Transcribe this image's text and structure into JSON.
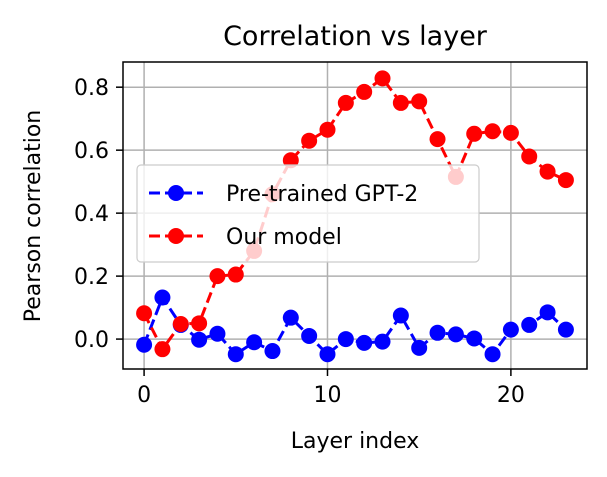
{
  "chart_data": {
    "type": "line",
    "title": "Correlation vs layer",
    "xlabel": "Layer index",
    "ylabel": "Pearson correlation",
    "xlim": [
      -1.15,
      24.15
    ],
    "ylim": [
      -0.095,
      0.88
    ],
    "xticks": [
      0,
      10,
      20
    ],
    "xtick_labels": [
      "0",
      "10",
      "20"
    ],
    "yticks": [
      0.0,
      0.2,
      0.4,
      0.6,
      0.8
    ],
    "ytick_labels": [
      "0.0",
      "0.2",
      "0.4",
      "0.6",
      "0.8"
    ],
    "grid": true,
    "legend_position": "center-left",
    "x": [
      0,
      1,
      2,
      3,
      4,
      5,
      6,
      7,
      8,
      9,
      10,
      11,
      12,
      13,
      14,
      15,
      16,
      17,
      18,
      19,
      20,
      21,
      22,
      23
    ],
    "series": [
      {
        "name": "Pre-trained GPT-2",
        "color": "#0000ff",
        "linestyle": "dashed",
        "marker": "circle",
        "values": [
          -0.018,
          0.132,
          0.045,
          -0.002,
          0.017,
          -0.048,
          -0.01,
          -0.038,
          0.068,
          0.01,
          -0.048,
          0.0,
          -0.012,
          -0.008,
          0.075,
          -0.028,
          0.02,
          0.015,
          0.002,
          -0.048,
          0.03,
          0.045,
          0.085,
          0.03
        ]
      },
      {
        "name": "Our model",
        "color": "#ff0000",
        "linestyle": "dashed",
        "marker": "circle",
        "values": [
          0.082,
          -0.032,
          0.048,
          0.05,
          0.2,
          0.205,
          0.28,
          0.46,
          0.568,
          0.63,
          0.665,
          0.75,
          0.785,
          0.828,
          0.75,
          0.755,
          0.635,
          0.515,
          0.652,
          0.66,
          0.655,
          0.58,
          0.532,
          0.505
        ]
      }
    ]
  }
}
